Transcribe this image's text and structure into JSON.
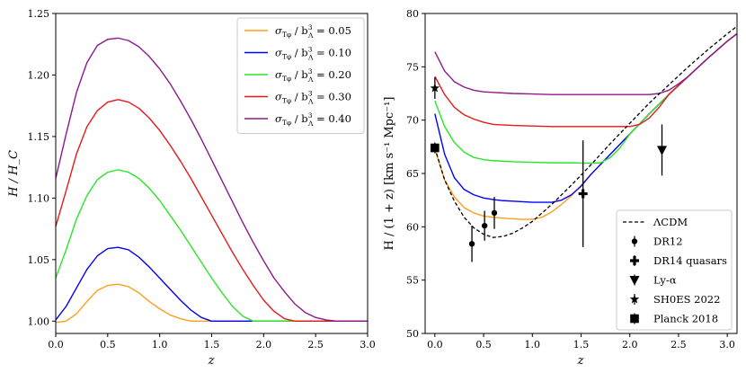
{
  "chart_data": [
    {
      "type": "line",
      "xlabel": "z",
      "ylabel": "H / H_C",
      "xlim": [
        0.0,
        3.0
      ],
      "ylim": [
        0.99,
        1.25
      ],
      "xticks": [
        "0.0",
        "0.5",
        "1.0",
        "1.5",
        "2.0",
        "2.5",
        "3.0"
      ],
      "yticks": [
        "1.00",
        "1.05",
        "1.10",
        "1.15",
        "1.20",
        "1.25"
      ],
      "legend": {
        "position": "top-right"
      },
      "series": [
        {
          "name": "σTφ / b3Λ = 0.05",
          "legend_prefix": "σ",
          "legend_sub": "Tφ",
          "legend_mid": " / b",
          "legend_sup": "3",
          "legend_sub2": "Λ",
          "legend_value": " = 0.05",
          "color": "#ff9f1c",
          "x": [
            0.0,
            0.1,
            0.2,
            0.3,
            0.4,
            0.5,
            0.6,
            0.7,
            0.8,
            0.9,
            1.0,
            1.1,
            1.2,
            1.3,
            1.4,
            1.5,
            3.0
          ],
          "y": [
            0.999,
            1.0,
            1.006,
            1.016,
            1.025,
            1.029,
            1.03,
            1.028,
            1.023,
            1.016,
            1.01,
            1.005,
            1.002,
            1.0,
            1.0,
            1.0,
            1.0
          ]
        },
        {
          "name": "σTφ / b3Λ = 0.10",
          "legend_prefix": "σ",
          "legend_sub": "Tφ",
          "legend_mid": " / b",
          "legend_sup": "3",
          "legend_sub2": "Λ",
          "legend_value": " = 0.10",
          "color": "#0000ff",
          "x": [
            0.0,
            0.1,
            0.2,
            0.3,
            0.4,
            0.5,
            0.6,
            0.7,
            0.8,
            0.9,
            1.0,
            1.1,
            1.2,
            1.3,
            1.4,
            1.5,
            1.55,
            3.0
          ],
          "y": [
            1.001,
            1.012,
            1.027,
            1.042,
            1.053,
            1.059,
            1.06,
            1.058,
            1.052,
            1.044,
            1.035,
            1.026,
            1.017,
            1.009,
            1.003,
            1.0,
            1.0,
            1.0
          ]
        },
        {
          "name": "σTφ / b3Λ = 0.20",
          "legend_prefix": "σ",
          "legend_sub": "Tφ",
          "legend_mid": " / b",
          "legend_sup": "3",
          "legend_sub2": "Λ",
          "legend_value": " = 0.20",
          "color": "#2ae62a",
          "x": [
            0.0,
            0.1,
            0.2,
            0.3,
            0.4,
            0.5,
            0.6,
            0.7,
            0.8,
            0.9,
            1.0,
            1.1,
            1.2,
            1.3,
            1.4,
            1.5,
            1.6,
            1.7,
            1.8,
            1.9,
            3.0
          ],
          "y": [
            1.035,
            1.058,
            1.083,
            1.102,
            1.115,
            1.121,
            1.123,
            1.121,
            1.116,
            1.108,
            1.098,
            1.086,
            1.074,
            1.061,
            1.048,
            1.035,
            1.023,
            1.012,
            1.004,
            1.0,
            1.0
          ]
        },
        {
          "name": "σTφ / b3Λ = 0.30",
          "legend_prefix": "σ",
          "legend_sub": "Tφ",
          "legend_mid": " / b",
          "legend_sup": "3",
          "legend_sub2": "Λ",
          "legend_value": " = 0.30",
          "color": "#e51a1a",
          "x": [
            0.0,
            0.1,
            0.2,
            0.3,
            0.4,
            0.5,
            0.6,
            0.7,
            0.8,
            0.9,
            1.0,
            1.1,
            1.2,
            1.3,
            1.4,
            1.5,
            1.6,
            1.7,
            1.8,
            1.9,
            2.0,
            2.1,
            2.2,
            2.3,
            3.0
          ],
          "y": [
            1.077,
            1.106,
            1.136,
            1.158,
            1.171,
            1.178,
            1.18,
            1.178,
            1.173,
            1.165,
            1.155,
            1.143,
            1.13,
            1.116,
            1.101,
            1.086,
            1.071,
            1.056,
            1.042,
            1.029,
            1.017,
            1.008,
            1.002,
            1.0,
            1.0
          ]
        },
        {
          "name": "σTφ / b3Λ = 0.40",
          "legend_prefix": "σ",
          "legend_sub": "Tφ",
          "legend_mid": " / b",
          "legend_sup": "3",
          "legend_sub2": "Λ",
          "legend_value": " = 0.40",
          "color": "#8b1a8b",
          "x": [
            0.0,
            0.1,
            0.2,
            0.3,
            0.4,
            0.5,
            0.6,
            0.7,
            0.8,
            0.9,
            1.0,
            1.1,
            1.2,
            1.3,
            1.4,
            1.5,
            1.6,
            1.7,
            1.8,
            1.9,
            2.0,
            2.1,
            2.2,
            2.3,
            2.4,
            2.5,
            2.6,
            2.7,
            2.75,
            3.0
          ],
          "y": [
            1.116,
            1.152,
            1.186,
            1.21,
            1.224,
            1.229,
            1.23,
            1.228,
            1.223,
            1.215,
            1.205,
            1.193,
            1.179,
            1.164,
            1.148,
            1.131,
            1.114,
            1.097,
            1.08,
            1.064,
            1.049,
            1.035,
            1.024,
            1.014,
            1.007,
            1.003,
            1.001,
            1.0,
            1.0,
            1.0
          ]
        }
      ]
    },
    {
      "type": "line",
      "xlabel": "z",
      "ylabel": "H / (1 + z) [km s⁻¹ Mpc⁻¹]",
      "xlim": [
        -0.1,
        3.1
      ],
      "ylim": [
        50,
        80
      ],
      "xticks": [
        "0.0",
        "0.5",
        "1.0",
        "1.5",
        "2.0",
        "2.5",
        "3.0"
      ],
      "yticks": [
        "50",
        "55",
        "60",
        "65",
        "70",
        "75",
        "80"
      ],
      "legend": {
        "position": "bottom-right"
      },
      "series": [
        {
          "name": "ΛCDM",
          "color": "#000000",
          "dashed": true,
          "x": [
            0.0,
            0.1,
            0.2,
            0.3,
            0.4,
            0.5,
            0.6,
            0.7,
            0.8,
            0.9,
            1.0,
            1.2,
            1.4,
            1.6,
            1.8,
            2.0,
            2.2,
            2.4,
            2.6,
            2.8,
            3.0,
            3.1
          ],
          "y": [
            67.4,
            64.4,
            62.4,
            60.9,
            59.9,
            59.3,
            59.0,
            59.1,
            59.4,
            59.9,
            60.5,
            62.1,
            63.9,
            65.8,
            67.8,
            69.7,
            71.6,
            73.3,
            75.0,
            76.6,
            78.1,
            78.8
          ]
        },
        {
          "name": "σTφ / b3Λ = 0.05",
          "color": "#ff9f1c",
          "x": [
            0.0,
            0.1,
            0.2,
            0.3,
            0.4,
            0.5,
            0.6,
            0.7,
            0.8,
            0.9,
            1.0,
            1.1,
            1.2,
            1.3,
            1.4,
            1.5,
            1.6,
            1.8,
            2.0,
            2.2,
            2.4,
            2.6,
            2.8,
            3.0,
            3.1
          ],
          "y": [
            67.3,
            64.4,
            62.8,
            61.8,
            61.3,
            61.0,
            60.9,
            60.8,
            60.75,
            60.7,
            60.7,
            60.9,
            61.4,
            62.1,
            62.9,
            63.9,
            64.9,
            66.8,
            68.7,
            70.6,
            72.4,
            74.1,
            75.8,
            77.4,
            78.1
          ]
        },
        {
          "name": "σTφ / b3Λ = 0.10",
          "color": "#0000ff",
          "x": [
            0.0,
            0.1,
            0.2,
            0.3,
            0.4,
            0.5,
            0.6,
            0.7,
            0.8,
            0.9,
            1.0,
            1.1,
            1.2,
            1.3,
            1.4,
            1.5,
            1.6,
            1.8,
            2.0,
            2.2,
            2.4,
            2.6,
            2.8,
            3.0,
            3.1
          ],
          "y": [
            70.6,
            66.8,
            64.6,
            63.5,
            63.0,
            62.7,
            62.55,
            62.45,
            62.4,
            62.35,
            62.3,
            62.3,
            62.3,
            62.5,
            63.0,
            63.8,
            64.9,
            66.8,
            68.7,
            70.6,
            72.4,
            74.1,
            75.8,
            77.4,
            78.1
          ]
        },
        {
          "name": "σTφ / b3Λ = 0.20",
          "color": "#2ae62a",
          "x": [
            0.0,
            0.1,
            0.2,
            0.3,
            0.4,
            0.5,
            0.6,
            0.8,
            1.0,
            1.2,
            1.4,
            1.6,
            1.7,
            1.8,
            1.9,
            2.0,
            2.2,
            2.4,
            2.6,
            2.8,
            3.0,
            3.1
          ],
          "y": [
            71.8,
            69.4,
            67.9,
            67.0,
            66.5,
            66.3,
            66.2,
            66.1,
            66.05,
            66.0,
            66.0,
            65.95,
            66.0,
            66.5,
            67.4,
            68.7,
            70.6,
            72.4,
            74.1,
            75.8,
            77.4,
            78.1
          ]
        },
        {
          "name": "σTφ / b3Λ = 0.30",
          "color": "#e51a1a",
          "x": [
            0.0,
            0.1,
            0.2,
            0.3,
            0.4,
            0.5,
            0.6,
            0.8,
            1.0,
            1.2,
            1.4,
            1.6,
            1.8,
            2.0,
            2.1,
            2.2,
            2.3,
            2.4,
            2.6,
            2.8,
            3.0,
            3.1
          ],
          "y": [
            74.1,
            72.4,
            71.2,
            70.5,
            70.1,
            69.8,
            69.6,
            69.5,
            69.45,
            69.4,
            69.4,
            69.4,
            69.4,
            69.4,
            69.6,
            70.2,
            71.2,
            72.4,
            74.1,
            75.8,
            77.4,
            78.1
          ]
        },
        {
          "name": "σTφ / b3Λ = 0.40",
          "color": "#8b1a8b",
          "x": [
            0.0,
            0.1,
            0.2,
            0.3,
            0.4,
            0.5,
            0.6,
            0.8,
            1.0,
            1.2,
            1.4,
            1.6,
            1.8,
            2.0,
            2.2,
            2.3,
            2.4,
            2.5,
            2.6,
            2.8,
            3.0,
            3.1
          ],
          "y": [
            76.4,
            74.6,
            73.6,
            73.1,
            72.8,
            72.65,
            72.6,
            72.5,
            72.45,
            72.4,
            72.4,
            72.4,
            72.4,
            72.4,
            72.4,
            72.5,
            72.8,
            73.4,
            74.1,
            75.8,
            77.4,
            78.1
          ]
        }
      ],
      "points": [
        {
          "label": "DR12",
          "marker": "circle",
          "data": [
            {
              "x": 0.38,
              "y": 58.4,
              "yerr": 1.7
            },
            {
              "x": 0.51,
              "y": 60.1,
              "yerr": 1.4
            },
            {
              "x": 0.61,
              "y": 61.3,
              "yerr": 1.5
            }
          ]
        },
        {
          "label": "DR14 quasars",
          "marker": "plus",
          "data": [
            {
              "x": 1.52,
              "y": 63.1,
              "yerr": 5.0
            }
          ]
        },
        {
          "label": "Ly-α",
          "marker": "triangle-down",
          "data": [
            {
              "x": 2.33,
              "y": 67.2,
              "yerr": 2.4
            }
          ]
        },
        {
          "label": "SH0ES 2022",
          "marker": "star",
          "data": [
            {
              "x": 0.0,
              "y": 73.0,
              "yerr": 1.0
            }
          ]
        },
        {
          "label": "Planck 2018",
          "marker": "square",
          "data": [
            {
              "x": 0.0,
              "y": 67.4,
              "yerr": 0.5
            }
          ]
        }
      ]
    }
  ]
}
